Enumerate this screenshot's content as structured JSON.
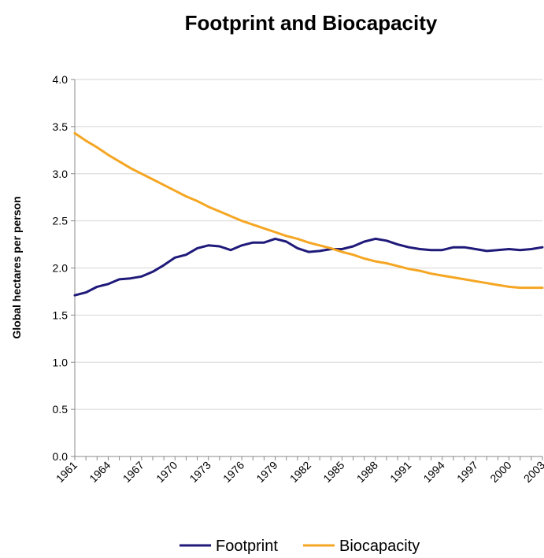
{
  "chart_data": {
    "type": "line",
    "title": "Footprint and Biocapacity",
    "xlabel": "",
    "ylabel": "Global hectares per person",
    "ylim": [
      0,
      4.0
    ],
    "y_ticks": [
      "0.0",
      "0.5",
      "1.0",
      "1.5",
      "2.0",
      "2.5",
      "3.0",
      "3.5",
      "4.0"
    ],
    "x_ticks": [
      "1961",
      "1964",
      "1967",
      "1970",
      "1973",
      "1976",
      "1979",
      "1982",
      "1985",
      "1988",
      "1991",
      "1994",
      "1997",
      "2000",
      "2003"
    ],
    "grid": true,
    "legend_position": "bottom",
    "x": [
      1961,
      1962,
      1963,
      1964,
      1965,
      1966,
      1967,
      1968,
      1969,
      1970,
      1971,
      1972,
      1973,
      1974,
      1975,
      1976,
      1977,
      1978,
      1979,
      1980,
      1981,
      1982,
      1983,
      1984,
      1985,
      1986,
      1987,
      1988,
      1989,
      1990,
      1991,
      1992,
      1993,
      1994,
      1995,
      1996,
      1997,
      1998,
      1999,
      2000,
      2001,
      2002,
      2003
    ],
    "series": [
      {
        "name": "Footprint",
        "color": "#1f1a7a",
        "values": [
          1.71,
          1.74,
          1.8,
          1.83,
          1.88,
          1.89,
          1.91,
          1.96,
          2.03,
          2.11,
          2.14,
          2.21,
          2.24,
          2.23,
          2.19,
          2.24,
          2.27,
          2.27,
          2.31,
          2.28,
          2.21,
          2.17,
          2.18,
          2.2,
          2.2,
          2.23,
          2.28,
          2.31,
          2.29,
          2.25,
          2.22,
          2.2,
          2.19,
          2.19,
          2.22,
          2.22,
          2.2,
          2.18,
          2.19,
          2.2,
          2.19,
          2.2,
          2.22
        ]
      },
      {
        "name": "Biocapacity",
        "color": "#f5a623",
        "values": [
          3.43,
          3.35,
          3.28,
          3.2,
          3.13,
          3.06,
          3.0,
          2.94,
          2.88,
          2.82,
          2.76,
          2.71,
          2.65,
          2.6,
          2.55,
          2.5,
          2.46,
          2.42,
          2.38,
          2.34,
          2.31,
          2.27,
          2.24,
          2.21,
          2.17,
          2.14,
          2.1,
          2.07,
          2.05,
          2.02,
          1.99,
          1.97,
          1.94,
          1.92,
          1.9,
          1.88,
          1.86,
          1.84,
          1.82,
          1.8,
          1.79,
          1.79,
          1.79
        ]
      }
    ]
  }
}
